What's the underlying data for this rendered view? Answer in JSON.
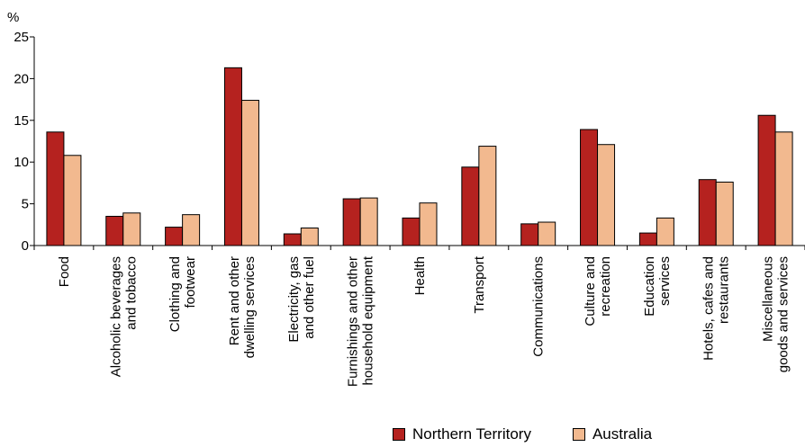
{
  "chart_data": {
    "type": "bar",
    "ylabel": "%",
    "ylim": [
      0,
      25
    ],
    "yticks": [
      "0",
      "5",
      "10",
      "15",
      "20",
      "25"
    ],
    "grid": false,
    "legend_position": "bottom-right",
    "categories": [
      [
        "Food"
      ],
      [
        "Alcoholic beverages",
        "and tobacco"
      ],
      [
        "Clothing and",
        "footwear"
      ],
      [
        "Rent and other",
        "dwelling services"
      ],
      [
        "Electricity, gas",
        "and other fuel"
      ],
      [
        "Furnishings and other",
        "household equipment"
      ],
      [
        "Health"
      ],
      [
        "Transport"
      ],
      [
        "Communications"
      ],
      [
        "Culture and",
        "recreation"
      ],
      [
        "Education",
        "services"
      ],
      [
        "Hotels, cafes and",
        "restaurants"
      ],
      [
        "Miscellaneous",
        "goods and services"
      ]
    ],
    "series": [
      {
        "name": "Northern Territory",
        "color": "#b5221f",
        "values": [
          13.6,
          3.5,
          2.2,
          21.3,
          1.4,
          5.6,
          3.3,
          9.4,
          2.6,
          13.9,
          1.5,
          7.9,
          15.6
        ]
      },
      {
        "name": "Australia",
        "color": "#f2b98f",
        "values": [
          10.8,
          3.9,
          3.7,
          17.4,
          2.1,
          5.7,
          5.1,
          11.9,
          2.8,
          12.1,
          3.3,
          7.6,
          13.6
        ]
      }
    ]
  }
}
